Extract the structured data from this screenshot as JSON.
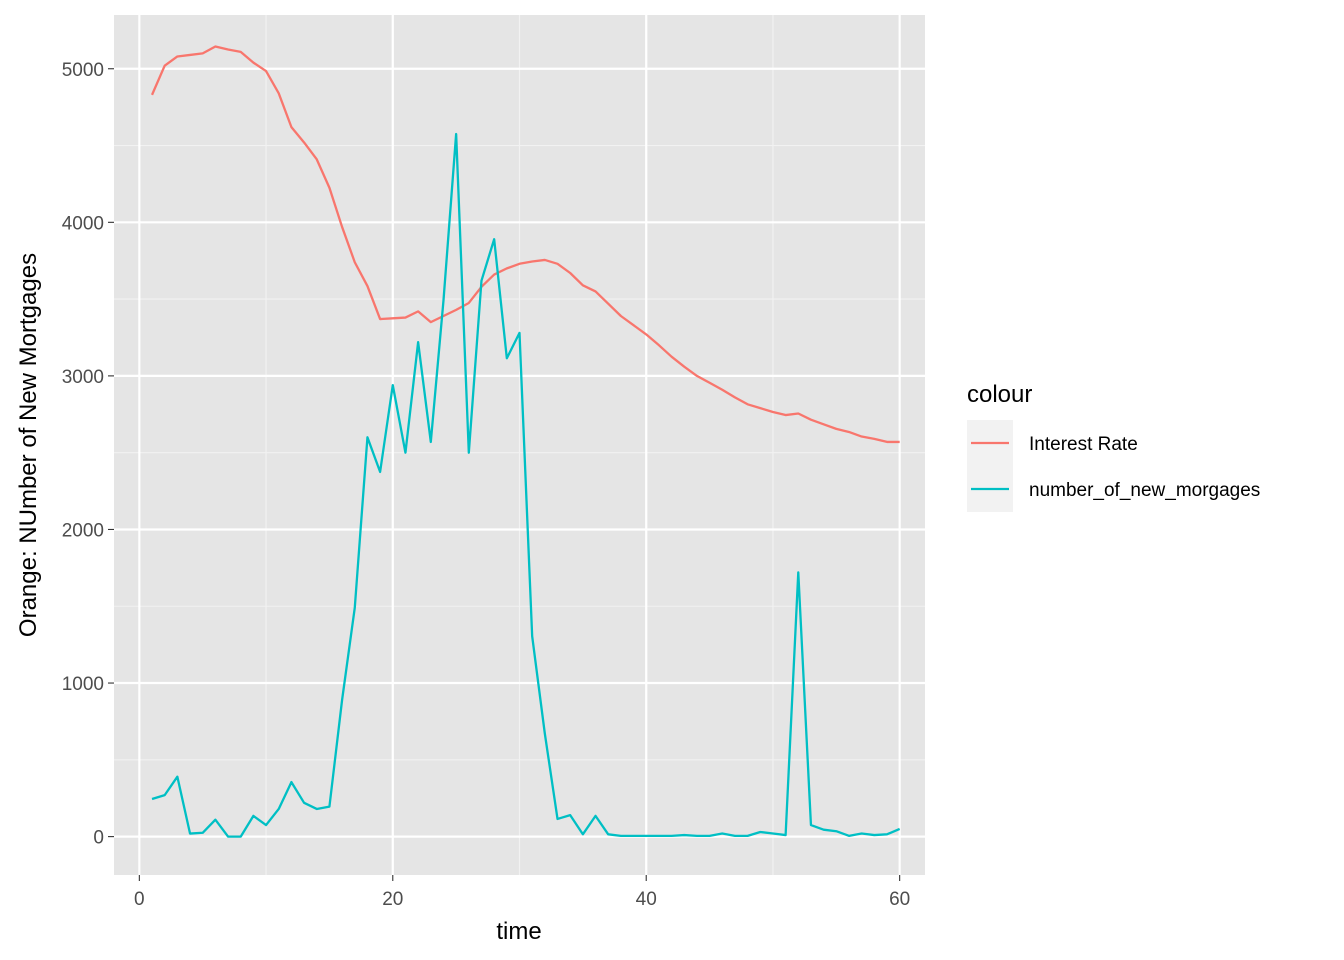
{
  "chart_data": {
    "type": "line",
    "xlabel": "time",
    "ylabel": "Orange: NUmber of New Mortgages",
    "xlim": [
      -2,
      62
    ],
    "ylim": [
      -250,
      5350
    ],
    "x_ticks": [
      0,
      20,
      40,
      60
    ],
    "x_minor_ticks": [
      10,
      30,
      50
    ],
    "y_ticks": [
      0,
      1000,
      2000,
      3000,
      4000,
      5000
    ],
    "y_minor_ticks": [
      500,
      1500,
      2500,
      3500,
      4500
    ],
    "grid": true,
    "background": "#e5e5e5",
    "legend": {
      "title": "colour",
      "position": "right"
    },
    "series": [
      {
        "name": "Interest Rate",
        "color": "#f8766d",
        "x": [
          1,
          2,
          3,
          4,
          5,
          6,
          7,
          8,
          9,
          10,
          11,
          12,
          13,
          14,
          15,
          16,
          17,
          18,
          19,
          20,
          21,
          22,
          23,
          24,
          25,
          26,
          27,
          28,
          29,
          30,
          31,
          32,
          33,
          34,
          35,
          36,
          37,
          38,
          39,
          40,
          41,
          42,
          43,
          44,
          45,
          46,
          47,
          48,
          49,
          50,
          51,
          52,
          53,
          54,
          55,
          56,
          57,
          58,
          59,
          60
        ],
        "values": [
          4830,
          5020,
          5080,
          5090,
          5100,
          5145,
          5125,
          5110,
          5040,
          4985,
          4840,
          4620,
          4520,
          4410,
          4225,
          3970,
          3740,
          3585,
          3370,
          3375,
          3380,
          3420,
          3350,
          3390,
          3430,
          3475,
          3580,
          3660,
          3700,
          3730,
          3745,
          3755,
          3730,
          3670,
          3590,
          3550,
          3470,
          3390,
          3330,
          3270,
          3200,
          3125,
          3060,
          3000,
          2955,
          2910,
          2860,
          2815,
          2790,
          2765,
          2745,
          2755,
          2715,
          2685,
          2655,
          2635,
          2605,
          2590,
          2570,
          2570
        ]
      },
      {
        "name": "number_of_new_morgages",
        "color": "#00bfc4",
        "x": [
          1,
          2,
          3,
          4,
          5,
          6,
          7,
          8,
          9,
          10,
          11,
          12,
          13,
          14,
          15,
          16,
          17,
          18,
          19,
          20,
          21,
          22,
          23,
          24,
          25,
          26,
          27,
          28,
          29,
          30,
          31,
          32,
          33,
          34,
          35,
          36,
          37,
          38,
          39,
          40,
          41,
          42,
          43,
          44,
          45,
          46,
          47,
          48,
          49,
          50,
          51,
          52,
          53,
          54,
          55,
          56,
          57,
          58,
          59,
          60
        ],
        "values": [
          245,
          270,
          390,
          20,
          25,
          110,
          0,
          0,
          135,
          75,
          180,
          355,
          220,
          180,
          195,
          890,
          1490,
          2600,
          2375,
          2940,
          2500,
          3220,
          2570,
          3490,
          4575,
          2500,
          3620,
          3890,
          3115,
          3280,
          1305,
          670,
          115,
          140,
          15,
          135,
          15,
          5,
          5,
          5,
          5,
          5,
          10,
          5,
          5,
          20,
          5,
          5,
          30,
          20,
          10,
          1720,
          75,
          45,
          35,
          5,
          20,
          10,
          15,
          50
        ]
      }
    ]
  }
}
